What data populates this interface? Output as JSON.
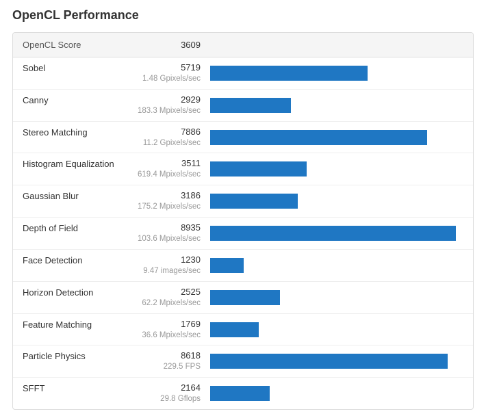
{
  "title": "OpenCL Performance",
  "header": {
    "label": "OpenCL Score",
    "score": "3609"
  },
  "bar_color": "#1f77c3",
  "max_value": 8935,
  "bar_scale_max": 9200,
  "rows": [
    {
      "name": "Sobel",
      "score": "5719",
      "sub": "1.48 Gpixels/sec",
      "value": 5719
    },
    {
      "name": "Canny",
      "score": "2929",
      "sub": "183.3 Mpixels/sec",
      "value": 2929
    },
    {
      "name": "Stereo Matching",
      "score": "7886",
      "sub": "11.2 Gpixels/sec",
      "value": 7886
    },
    {
      "name": "Histogram Equalization",
      "score": "3511",
      "sub": "619.4 Mpixels/sec",
      "value": 3511
    },
    {
      "name": "Gaussian Blur",
      "score": "3186",
      "sub": "175.2 Mpixels/sec",
      "value": 3186
    },
    {
      "name": "Depth of Field",
      "score": "8935",
      "sub": "103.6 Mpixels/sec",
      "value": 8935
    },
    {
      "name": "Face Detection",
      "score": "1230",
      "sub": "9.47 images/sec",
      "value": 1230
    },
    {
      "name": "Horizon Detection",
      "score": "2525",
      "sub": "62.2 Mpixels/sec",
      "value": 2525
    },
    {
      "name": "Feature Matching",
      "score": "1769",
      "sub": "36.6 Mpixels/sec",
      "value": 1769
    },
    {
      "name": "Particle Physics",
      "score": "8618",
      "sub": "229.5 FPS",
      "value": 8618
    },
    {
      "name": "SFFT",
      "score": "2164",
      "sub": "29.8 Gflops",
      "value": 2164
    }
  ]
}
